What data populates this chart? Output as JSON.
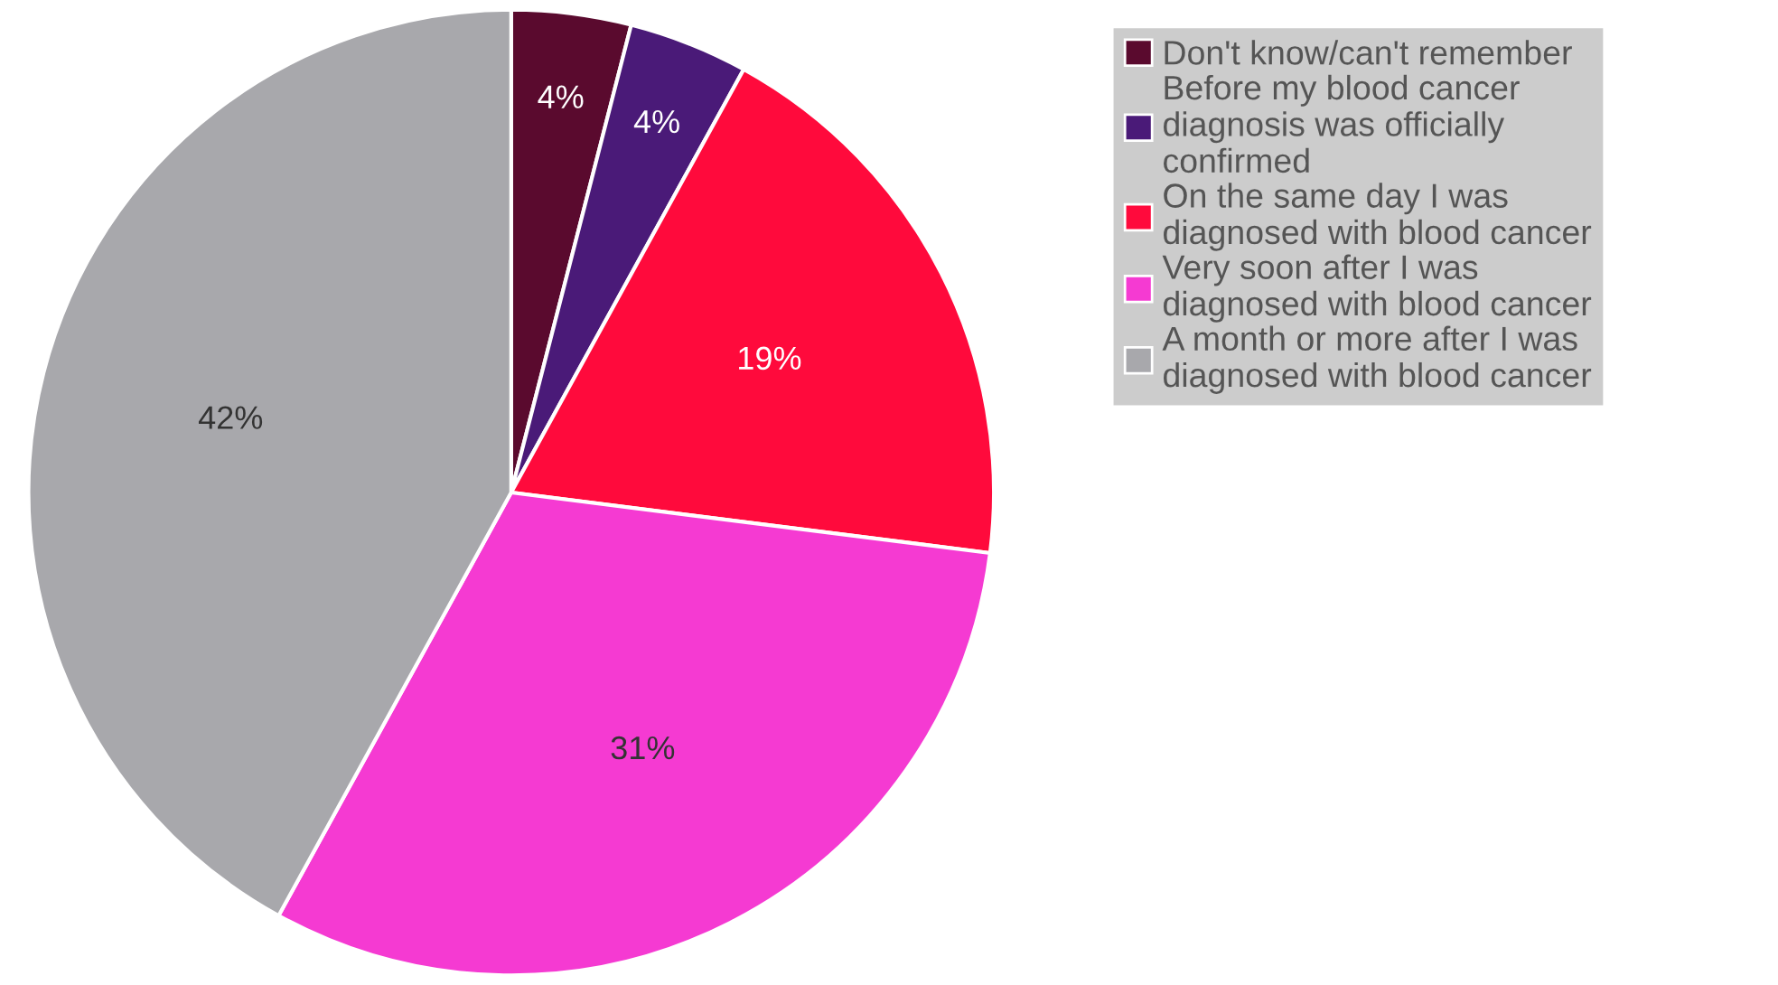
{
  "chart_data": {
    "type": "pie",
    "categories": [
      "Don't know/can't remember",
      "Before my blood cancer diagnosis was officially confirmed",
      "On the same day I was diagnosed with blood cancer",
      "Very soon after I was diagnosed with blood cancer",
      "A month or more after I was diagnosed with blood cancer"
    ],
    "values": [
      4,
      4,
      19,
      31,
      42
    ],
    "colors": [
      "#5a0a2e",
      "#4a1a78",
      "#ff0a3c",
      "#f53ad2",
      "#a8a8ac"
    ],
    "value_labels": [
      "4%",
      "4%",
      "19%",
      "31%",
      "42%"
    ],
    "legend": "right"
  }
}
